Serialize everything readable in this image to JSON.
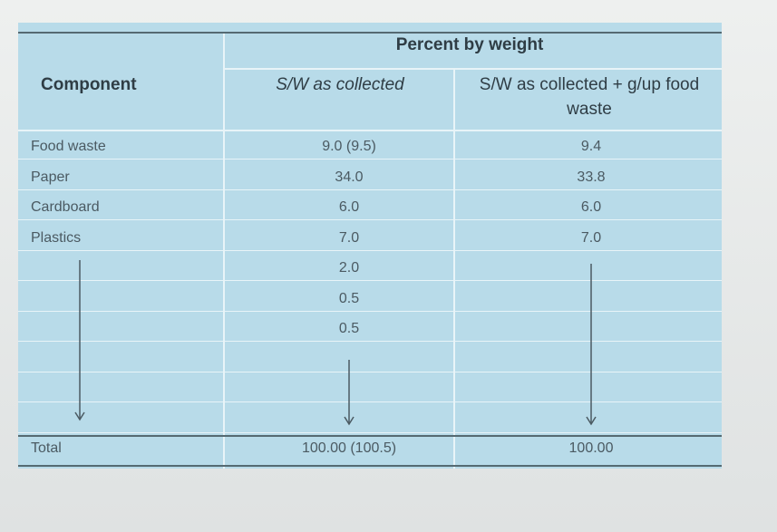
{
  "header": {
    "group_title": "Percent by weight",
    "columns": [
      "Component",
      "S/W as collected",
      "S/W as collected + g/up food waste"
    ]
  },
  "rows": [
    {
      "component": "Food waste",
      "collected": "9.0 (9.5)",
      "with_food_waste": "9.4"
    },
    {
      "component": "Paper",
      "collected": "34.0",
      "with_food_waste": "33.8"
    },
    {
      "component": "Cardboard",
      "collected": "6.0",
      "with_food_waste": "6.0"
    },
    {
      "component": "Plastics",
      "collected": "7.0",
      "with_food_waste": "7.0"
    },
    {
      "collected": "2.0"
    },
    {
      "collected": "0.5"
    },
    {
      "collected": "0.5"
    }
  ],
  "total": {
    "component": "Total",
    "collected": "100.00 (100.5)",
    "with_food_waste": "100.00"
  }
}
